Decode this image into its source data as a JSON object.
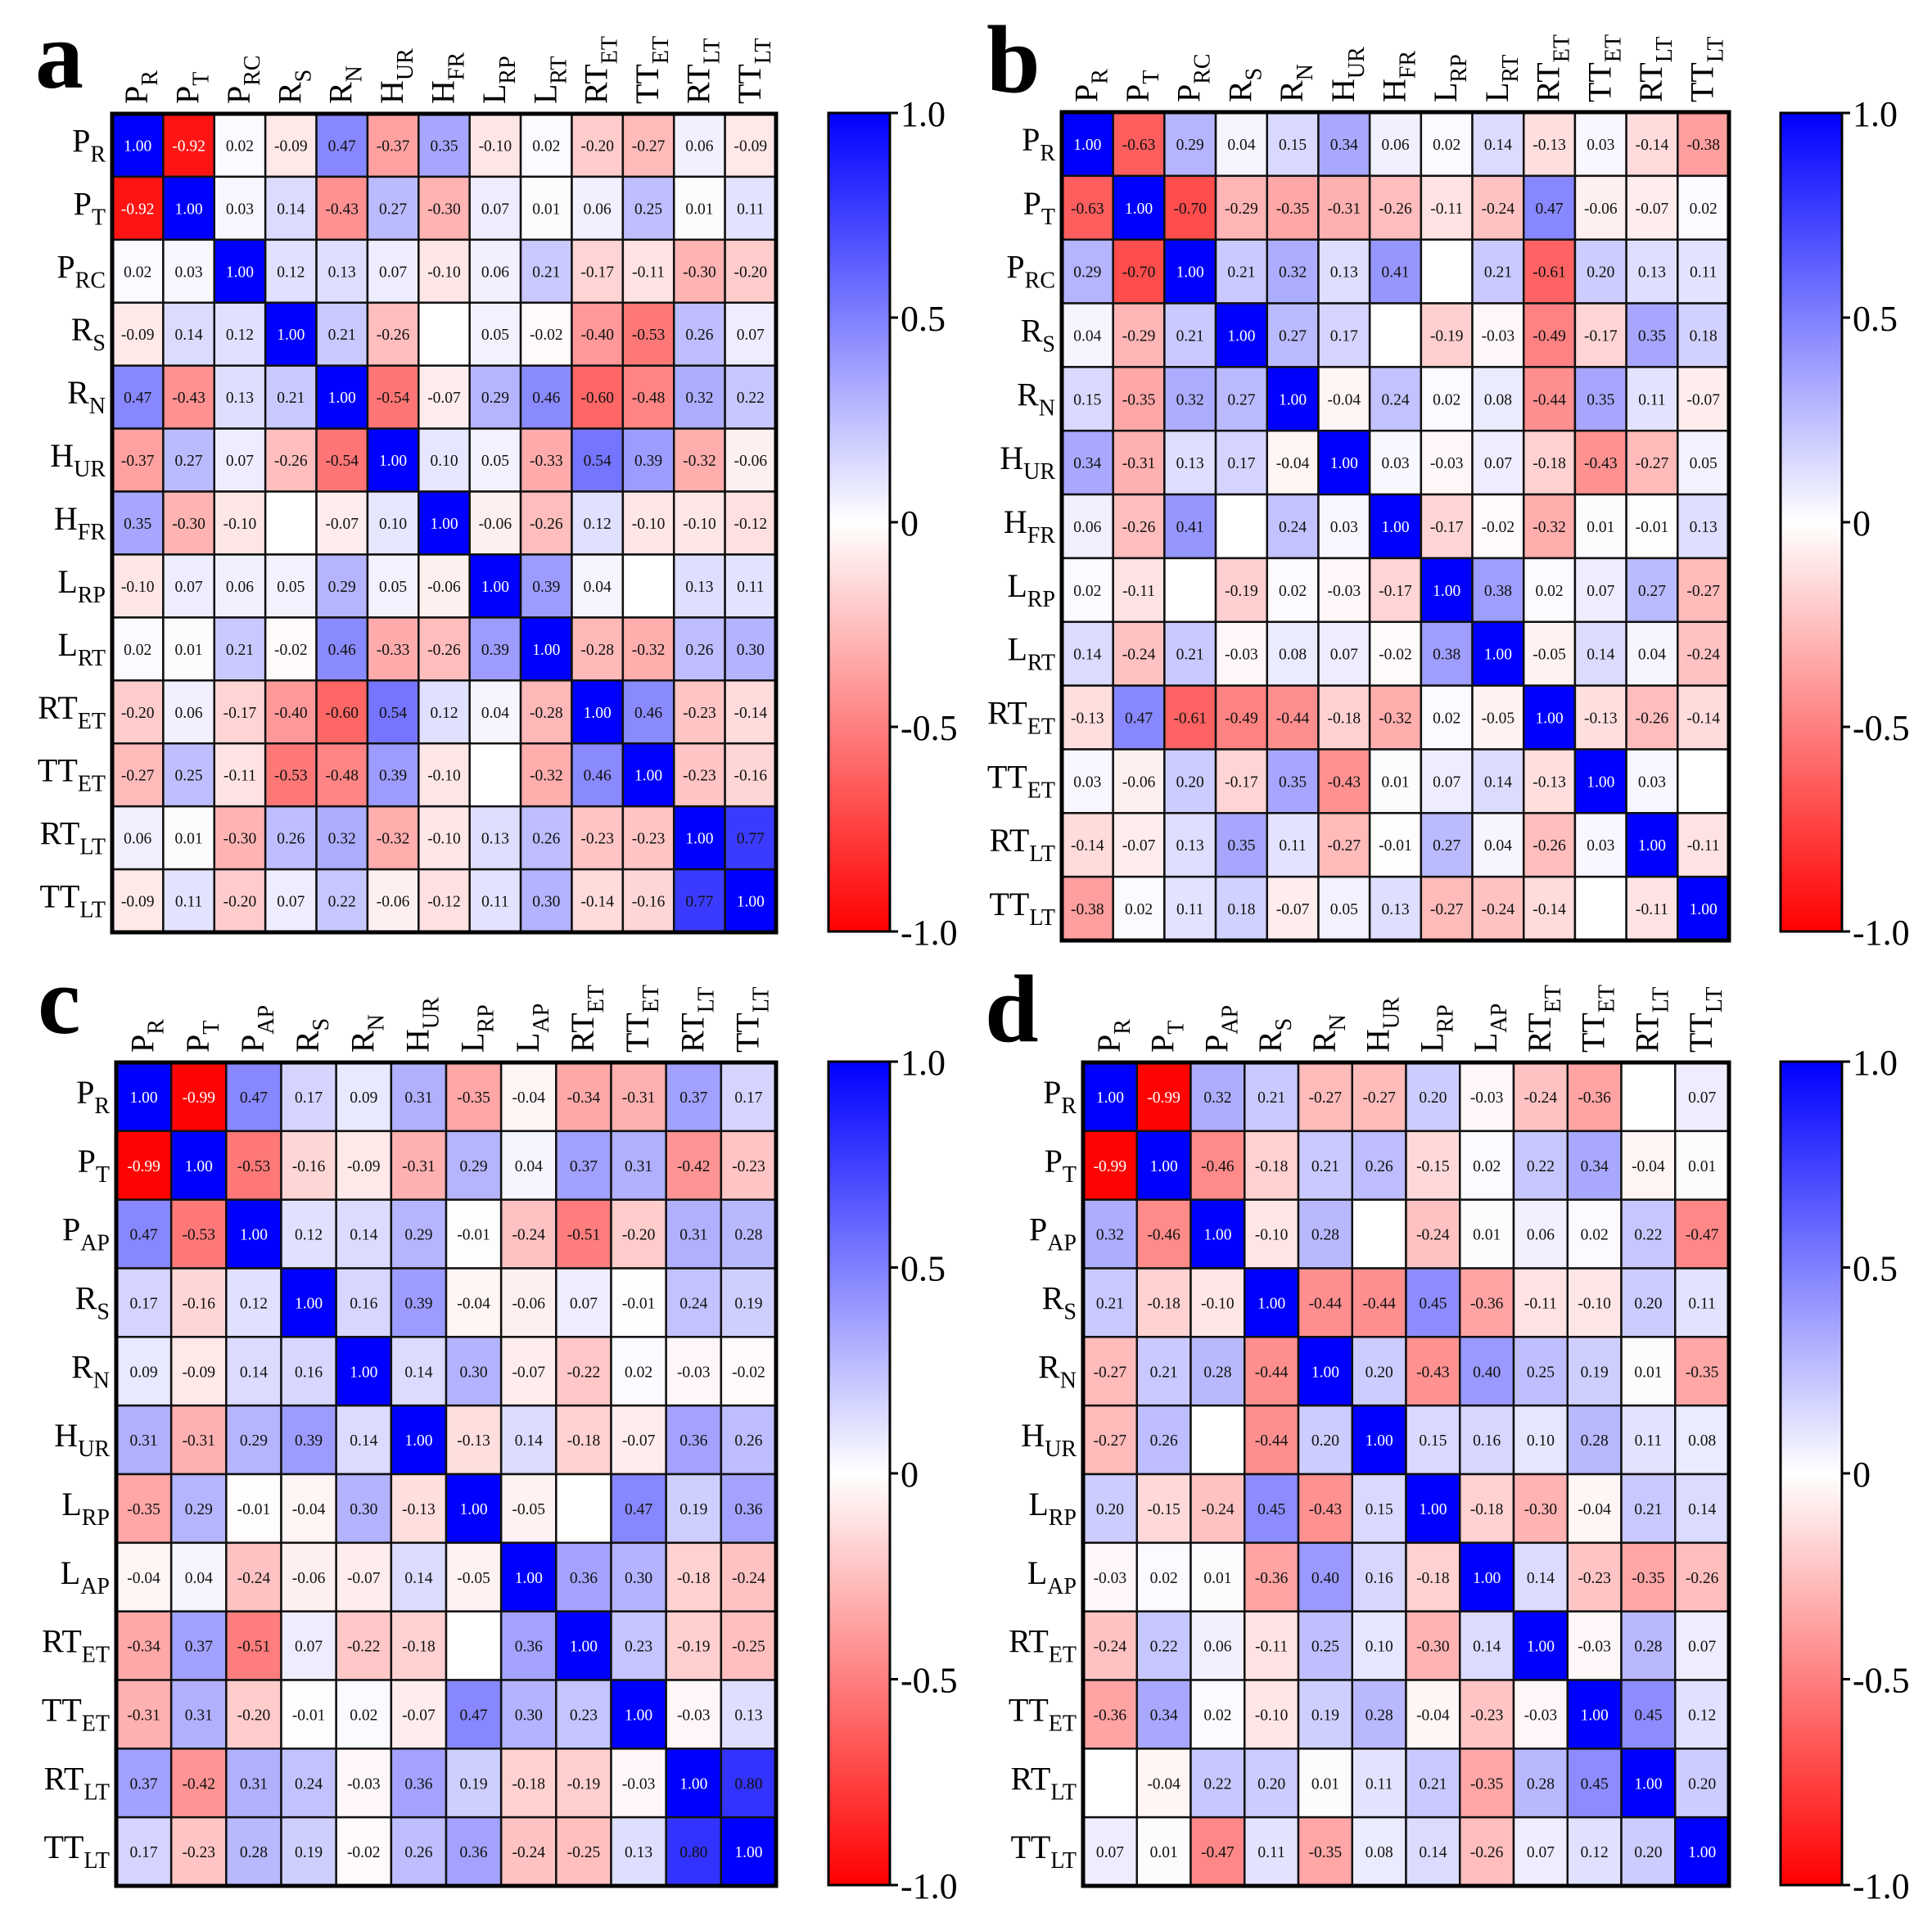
{
  "colors": {
    "positive": "#0000ff",
    "neutral": "#ffffff",
    "negative": "#ff0000",
    "border": "#111111"
  },
  "colorbar": {
    "min": -1.0,
    "max": 1.0,
    "ticks": [
      "1.0",
      "0.5",
      "0",
      "-0.5",
      "-1.0"
    ],
    "tick_values": [
      1.0,
      0.5,
      0,
      -0.5,
      -1.0
    ]
  },
  "chart_data": [
    {
      "type": "heatmap",
      "panel": "a",
      "labels": [
        [
          "P",
          "R"
        ],
        [
          "P",
          "T"
        ],
        [
          "P",
          "RC"
        ],
        [
          "R",
          "S"
        ],
        [
          "R",
          "N"
        ],
        [
          "H",
          "UR"
        ],
        [
          "H",
          "FR"
        ],
        [
          "L",
          "RP"
        ],
        [
          "L",
          "RT"
        ],
        [
          "RT",
          "ET"
        ],
        [
          "TT",
          "ET"
        ],
        [
          "RT",
          "LT"
        ],
        [
          "TT",
          "LT"
        ]
      ],
      "matrix": [
        [
          "1.00",
          "-0.92",
          "0.02",
          "-0.09",
          "0.47",
          "-0.37",
          "0.35",
          "-0.10",
          "0.02",
          "-0.20",
          "-0.27",
          "0.06",
          "-0.09"
        ],
        [
          "-0.92",
          "1.00",
          "0.03",
          "0.14",
          "-0.43",
          "0.27",
          "-0.30",
          "0.07",
          "0.01",
          "0.06",
          "0.25",
          "0.01",
          "0.11"
        ],
        [
          "0.02",
          "0.03",
          "1.00",
          "0.12",
          "0.13",
          "0.07",
          "-0.10",
          "0.06",
          "0.21",
          "-0.17",
          "-0.11",
          "-0.30",
          "-0.20"
        ],
        [
          "-0.09",
          "0.14",
          "0.12",
          "1.00",
          "0.21",
          "-0.26",
          "",
          "0.05",
          "-0.02",
          "-0.40",
          "-0.53",
          "0.26",
          "0.07"
        ],
        [
          "0.47",
          "-0.43",
          "0.13",
          "0.21",
          "1.00",
          "-0.54",
          "-0.07",
          "0.29",
          "0.46",
          "-0.60",
          "-0.48",
          "0.32",
          "0.22"
        ],
        [
          "-0.37",
          "0.27",
          "0.07",
          "-0.26",
          "-0.54",
          "1.00",
          "0.10",
          "0.05",
          "-0.33",
          "0.54",
          "0.39",
          "-0.32",
          "-0.06"
        ],
        [
          "0.35",
          "-0.30",
          "-0.10",
          "",
          "-0.07",
          "0.10",
          "1.00",
          "-0.06",
          "-0.26",
          "0.12",
          "-0.10",
          "-0.10",
          "-0.12"
        ],
        [
          "-0.10",
          "0.07",
          "0.06",
          "0.05",
          "0.29",
          "0.05",
          "-0.06",
          "1.00",
          "0.39",
          "0.04",
          "",
          "0.13",
          "0.11"
        ],
        [
          "0.02",
          "0.01",
          "0.21",
          "-0.02",
          "0.46",
          "-0.33",
          "-0.26",
          "0.39",
          "1.00",
          "-0.28",
          "-0.32",
          "0.26",
          "0.30"
        ],
        [
          "-0.20",
          "0.06",
          "-0.17",
          "-0.40",
          "-0.60",
          "0.54",
          "0.12",
          "0.04",
          "-0.28",
          "1.00",
          "0.46",
          "-0.23",
          "-0.14"
        ],
        [
          "-0.27",
          "0.25",
          "-0.11",
          "-0.53",
          "-0.48",
          "0.39",
          "-0.10",
          "",
          "-0.32",
          "0.46",
          "1.00",
          "-0.23",
          "-0.16"
        ],
        [
          "0.06",
          "0.01",
          "-0.30",
          "0.26",
          "0.32",
          "-0.32",
          "-0.10",
          "0.13",
          "0.26",
          "-0.23",
          "-0.23",
          "1.00",
          "0.77"
        ],
        [
          "-0.09",
          "0.11",
          "-0.20",
          "0.07",
          "0.22",
          "-0.06",
          "-0.12",
          "0.11",
          "0.30",
          "-0.14",
          "-0.16",
          "0.77",
          "1.00"
        ]
      ],
      "colorbar": {
        "min": -1.0,
        "max": 1.0
      }
    },
    {
      "type": "heatmap",
      "panel": "b",
      "labels": [
        [
          "P",
          "R"
        ],
        [
          "P",
          "T"
        ],
        [
          "P",
          "RC"
        ],
        [
          "R",
          "S"
        ],
        [
          "R",
          "N"
        ],
        [
          "H",
          "UR"
        ],
        [
          "H",
          "FR"
        ],
        [
          "L",
          "RP"
        ],
        [
          "L",
          "RT"
        ],
        [
          "RT",
          "ET"
        ],
        [
          "TT",
          "ET"
        ],
        [
          "RT",
          "LT"
        ],
        [
          "TT",
          "LT"
        ]
      ],
      "matrix": [
        [
          "1.00",
          "-0.63",
          "0.29",
          "0.04",
          "0.15",
          "0.34",
          "0.06",
          "0.02",
          "0.14",
          "-0.13",
          "0.03",
          "-0.14",
          "-0.38"
        ],
        [
          "-0.63",
          "1.00",
          "-0.70",
          "-0.29",
          "-0.35",
          "-0.31",
          "-0.26",
          "-0.11",
          "-0.24",
          "0.47",
          "-0.06",
          "-0.07",
          "0.02"
        ],
        [
          "0.29",
          "-0.70",
          "1.00",
          "0.21",
          "0.32",
          "0.13",
          "0.41",
          "",
          "0.21",
          "-0.61",
          "0.20",
          "0.13",
          "0.11"
        ],
        [
          "0.04",
          "-0.29",
          "0.21",
          "1.00",
          "0.27",
          "0.17",
          "",
          "-0.19",
          "-0.03",
          "-0.49",
          "-0.17",
          "0.35",
          "0.18"
        ],
        [
          "0.15",
          "-0.35",
          "0.32",
          "0.27",
          "1.00",
          "-0.04",
          "0.24",
          "0.02",
          "0.08",
          "-0.44",
          "0.35",
          "0.11",
          "-0.07"
        ],
        [
          "0.34",
          "-0.31",
          "0.13",
          "0.17",
          "-0.04",
          "1.00",
          "0.03",
          "-0.03",
          "0.07",
          "-0.18",
          "-0.43",
          "-0.27",
          "0.05"
        ],
        [
          "0.06",
          "-0.26",
          "0.41",
          "",
          "0.24",
          "0.03",
          "1.00",
          "-0.17",
          "-0.02",
          "-0.32",
          "0.01",
          "-0.01",
          "0.13"
        ],
        [
          "0.02",
          "-0.11",
          "",
          "-0.19",
          "0.02",
          "-0.03",
          "-0.17",
          "1.00",
          "0.38",
          "0.02",
          "0.07",
          "0.27",
          "-0.27"
        ],
        [
          "0.14",
          "-0.24",
          "0.21",
          "-0.03",
          "0.08",
          "0.07",
          "-0.02",
          "0.38",
          "1.00",
          "-0.05",
          "0.14",
          "0.04",
          "-0.24"
        ],
        [
          "-0.13",
          "0.47",
          "-0.61",
          "-0.49",
          "-0.44",
          "-0.18",
          "-0.32",
          "0.02",
          "-0.05",
          "1.00",
          "-0.13",
          "-0.26",
          "-0.14"
        ],
        [
          "0.03",
          "-0.06",
          "0.20",
          "-0.17",
          "0.35",
          "-0.43",
          "0.01",
          "0.07",
          "0.14",
          "-0.13",
          "1.00",
          "0.03",
          ""
        ],
        [
          "-0.14",
          "-0.07",
          "0.13",
          "0.35",
          "0.11",
          "-0.27",
          "-0.01",
          "0.27",
          "0.04",
          "-0.26",
          "0.03",
          "1.00",
          "-0.11"
        ],
        [
          "-0.38",
          "0.02",
          "0.11",
          "0.18",
          "-0.07",
          "0.05",
          "0.13",
          "-0.27",
          "-0.24",
          "-0.14",
          "",
          "-0.11",
          "1.00"
        ]
      ],
      "colorbar": {
        "min": -1.0,
        "max": 1.0
      }
    },
    {
      "type": "heatmap",
      "panel": "c",
      "labels": [
        [
          "P",
          "R"
        ],
        [
          "P",
          "T"
        ],
        [
          "P",
          "AP"
        ],
        [
          "R",
          "S"
        ],
        [
          "R",
          "N"
        ],
        [
          "H",
          "UR"
        ],
        [
          "L",
          "RP"
        ],
        [
          "L",
          "AP"
        ],
        [
          "RT",
          "ET"
        ],
        [
          "TT",
          "ET"
        ],
        [
          "RT",
          "LT"
        ],
        [
          "TT",
          "LT"
        ]
      ],
      "matrix": [
        [
          "1.00",
          "-0.99",
          "0.47",
          "0.17",
          "0.09",
          "0.31",
          "-0.35",
          "-0.04",
          "-0.34",
          "-0.31",
          "0.37",
          "0.17"
        ],
        [
          "-0.99",
          "1.00",
          "-0.53",
          "-0.16",
          "-0.09",
          "-0.31",
          "0.29",
          "0.04",
          "0.37",
          "0.31",
          "-0.42",
          "-0.23"
        ],
        [
          "0.47",
          "-0.53",
          "1.00",
          "0.12",
          "0.14",
          "0.29",
          "-0.01",
          "-0.24",
          "-0.51",
          "-0.20",
          "0.31",
          "0.28"
        ],
        [
          "0.17",
          "-0.16",
          "0.12",
          "1.00",
          "0.16",
          "0.39",
          "-0.04",
          "-0.06",
          "0.07",
          "-0.01",
          "0.24",
          "0.19"
        ],
        [
          "0.09",
          "-0.09",
          "0.14",
          "0.16",
          "1.00",
          "0.14",
          "0.30",
          "-0.07",
          "-0.22",
          "0.02",
          "-0.03",
          "-0.02"
        ],
        [
          "0.31",
          "-0.31",
          "0.29",
          "0.39",
          "0.14",
          "1.00",
          "-0.13",
          "0.14",
          "-0.18",
          "-0.07",
          "0.36",
          "0.26"
        ],
        [
          "-0.35",
          "0.29",
          "-0.01",
          "-0.04",
          "0.30",
          "-0.13",
          "1.00",
          "-0.05",
          "",
          "0.47",
          "0.19",
          "0.36"
        ],
        [
          "-0.04",
          "0.04",
          "-0.24",
          "-0.06",
          "-0.07",
          "0.14",
          "-0.05",
          "1.00",
          "0.36",
          "0.30",
          "-0.18",
          "-0.24"
        ],
        [
          "-0.34",
          "0.37",
          "-0.51",
          "0.07",
          "-0.22",
          "-0.18",
          "",
          "0.36",
          "1.00",
          "0.23",
          "-0.19",
          "-0.25"
        ],
        [
          "-0.31",
          "0.31",
          "-0.20",
          "-0.01",
          "0.02",
          "-0.07",
          "0.47",
          "0.30",
          "0.23",
          "1.00",
          "-0.03",
          "0.13"
        ],
        [
          "0.37",
          "-0.42",
          "0.31",
          "0.24",
          "-0.03",
          "0.36",
          "0.19",
          "-0.18",
          "-0.19",
          "-0.03",
          "1.00",
          "0.80"
        ],
        [
          "0.17",
          "-0.23",
          "0.28",
          "0.19",
          "-0.02",
          "0.26",
          "0.36",
          "-0.24",
          "-0.25",
          "0.13",
          "0.80",
          "1.00"
        ]
      ],
      "colorbar": {
        "min": -1.0,
        "max": 1.0
      }
    },
    {
      "type": "heatmap",
      "panel": "d",
      "labels": [
        [
          "P",
          "R"
        ],
        [
          "P",
          "T"
        ],
        [
          "P",
          "AP"
        ],
        [
          "R",
          "S"
        ],
        [
          "R",
          "N"
        ],
        [
          "H",
          "UR"
        ],
        [
          "L",
          "RP"
        ],
        [
          "L",
          "AP"
        ],
        [
          "RT",
          "ET"
        ],
        [
          "TT",
          "ET"
        ],
        [
          "RT",
          "LT"
        ],
        [
          "TT",
          "LT"
        ]
      ],
      "matrix": [
        [
          "1.00",
          "-0.99",
          "0.32",
          "0.21",
          "-0.27",
          "-0.27",
          "0.20",
          "-0.03",
          "-0.24",
          "-0.36",
          "",
          "0.07"
        ],
        [
          "-0.99",
          "1.00",
          "-0.46",
          "-0.18",
          "0.21",
          "0.26",
          "-0.15",
          "0.02",
          "0.22",
          "0.34",
          "-0.04",
          "0.01"
        ],
        [
          "0.32",
          "-0.46",
          "1.00",
          "-0.10",
          "0.28",
          "",
          "-0.24",
          "0.01",
          "0.06",
          "0.02",
          "0.22",
          "-0.47"
        ],
        [
          "0.21",
          "-0.18",
          "-0.10",
          "1.00",
          "-0.44",
          "-0.44",
          "0.45",
          "-0.36",
          "-0.11",
          "-0.10",
          "0.20",
          "0.11"
        ],
        [
          "-0.27",
          "0.21",
          "0.28",
          "-0.44",
          "1.00",
          "0.20",
          "-0.43",
          "0.40",
          "0.25",
          "0.19",
          "0.01",
          "-0.35"
        ],
        [
          "-0.27",
          "0.26",
          "",
          "-0.44",
          "0.20",
          "1.00",
          "0.15",
          "0.16",
          "0.10",
          "0.28",
          "0.11",
          "0.08"
        ],
        [
          "0.20",
          "-0.15",
          "-0.24",
          "0.45",
          "-0.43",
          "0.15",
          "1.00",
          "-0.18",
          "-0.30",
          "-0.04",
          "0.21",
          "0.14"
        ],
        [
          "-0.03",
          "0.02",
          "0.01",
          "-0.36",
          "0.40",
          "0.16",
          "-0.18",
          "1.00",
          "0.14",
          "-0.23",
          "-0.35",
          "-0.26"
        ],
        [
          "-0.24",
          "0.22",
          "0.06",
          "-0.11",
          "0.25",
          "0.10",
          "-0.30",
          "0.14",
          "1.00",
          "-0.03",
          "0.28",
          "0.07"
        ],
        [
          "-0.36",
          "0.34",
          "0.02",
          "-0.10",
          "0.19",
          "0.28",
          "-0.04",
          "-0.23",
          "-0.03",
          "1.00",
          "0.45",
          "0.12"
        ],
        [
          "",
          "-0.04",
          "0.22",
          "0.20",
          "0.01",
          "0.11",
          "0.21",
          "-0.35",
          "0.28",
          "0.45",
          "1.00",
          "0.20"
        ],
        [
          "0.07",
          "0.01",
          "-0.47",
          "0.11",
          "-0.35",
          "0.08",
          "0.14",
          "-0.26",
          "0.07",
          "0.12",
          "0.20",
          "1.00"
        ]
      ],
      "colorbar": {
        "min": -1.0,
        "max": 1.0
      }
    }
  ]
}
